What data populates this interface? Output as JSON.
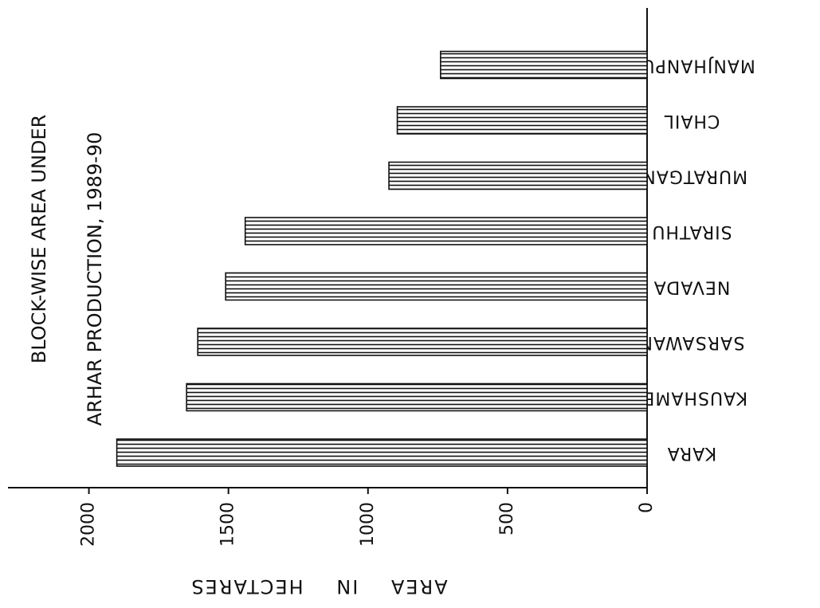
{
  "chart_data": {
    "type": "bar",
    "orientation": "horizontal",
    "title": "BLOCK-WISE AREA UNDER",
    "subtitle": "ARHAR PRODUCTION, 1989-90",
    "x_label": "AREA IN HECTARES",
    "categories": [
      "KARA",
      "KAUSHAMBI",
      "SARSAWAN",
      "NEVADA",
      "SIRATHU",
      "MURATGANJ",
      "CHAIL",
      "MANJHANPUR"
    ],
    "values": [
      1900,
      1650,
      1610,
      1510,
      1440,
      925,
      895,
      740
    ],
    "color": "#111111",
    "xlim": [
      0,
      2290
    ],
    "xticks": [
      0,
      500,
      1000,
      1500,
      2000
    ],
    "grid": false
  }
}
